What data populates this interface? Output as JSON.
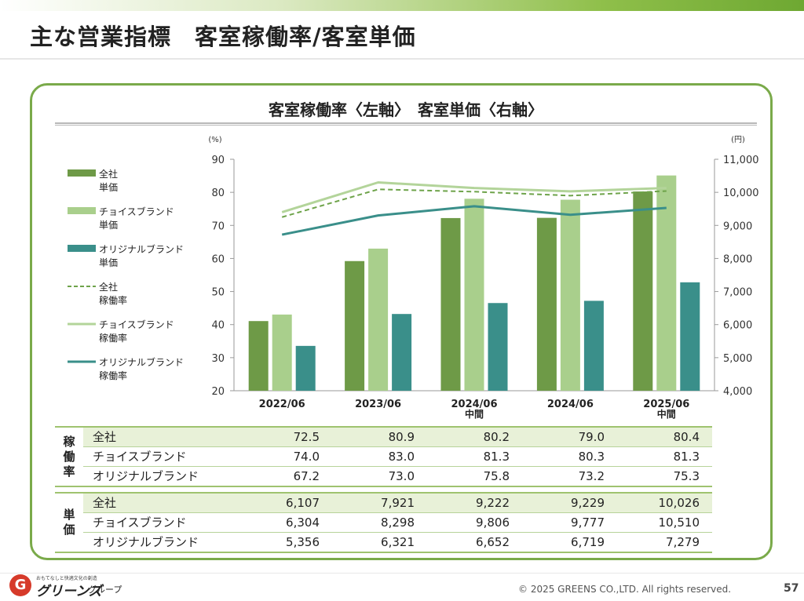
{
  "page": {
    "title": "主な営業指標　客室稼働率/客室単価",
    "copyright": "© 2025 GREENS CO.,LTD. All rights reserved.",
    "page_number": "57"
  },
  "logo": {
    "mark": "G",
    "tagline": "おもてなしと快適文化の創造",
    "name": "グリーンズ",
    "suffix": "グループ"
  },
  "chart_data": {
    "type": "bar",
    "title": "客室稼働率〈左軸〉　客室単価〈右軸〉",
    "categories": [
      "2022/06",
      "2023/06",
      "2024/06\n中間",
      "2024/06",
      "2025/06\n中間"
    ],
    "y_left": {
      "unit": "(%)",
      "range": [
        20,
        90
      ],
      "ticks": [
        20,
        30,
        40,
        50,
        60,
        70,
        80,
        90
      ]
    },
    "y_right": {
      "unit": "(円)",
      "range": [
        4000,
        11000
      ],
      "ticks": [
        4000,
        5000,
        6000,
        7000,
        8000,
        9000,
        10000,
        11000
      ],
      "tick_labels": [
        "4,000",
        "5,000",
        "6,000",
        "7,000",
        "8,000",
        "9,000",
        "10,000",
        "11,000"
      ]
    },
    "bar_series": [
      {
        "name": "全社\n単価",
        "axis": "right",
        "color": "#6e9a47",
        "values": [
          6107,
          7921,
          9222,
          9229,
          10026
        ]
      },
      {
        "name": "チョイスブランド\n単価",
        "axis": "right",
        "color": "#a9cf8c",
        "values": [
          6304,
          8298,
          9806,
          9777,
          10510
        ]
      },
      {
        "name": "オリジナルブランド\n単価",
        "axis": "right",
        "color": "#3a8f8a",
        "values": [
          5356,
          6321,
          6652,
          6719,
          7279
        ]
      }
    ],
    "line_series": [
      {
        "name": "全社\n稼働率",
        "axis": "left",
        "color": "#6ea34a",
        "dashed": true,
        "values": [
          72.5,
          80.9,
          80.2,
          79.0,
          80.4
        ]
      },
      {
        "name": "チョイスブランド\n稼働率",
        "axis": "left",
        "color": "#b3d49a",
        "dashed": false,
        "values": [
          74.0,
          83.0,
          81.3,
          80.3,
          81.3
        ]
      },
      {
        "name": "オリジナルブランド\n稼働率",
        "axis": "left",
        "color": "#3a8f8a",
        "dashed": false,
        "values": [
          67.2,
          73.0,
          75.8,
          73.2,
          75.3
        ]
      }
    ],
    "legend_position": "left",
    "grid": false
  },
  "table": {
    "occupancy": {
      "group_label": "稼\n働\n率",
      "rows": [
        {
          "label": "全社",
          "values": [
            "72.5",
            "80.9",
            "80.2",
            "79.0",
            "80.4"
          ]
        },
        {
          "label": "チョイスブランド",
          "values": [
            "74.0",
            "83.0",
            "81.3",
            "80.3",
            "81.3"
          ]
        },
        {
          "label": "オリジナルブランド",
          "values": [
            "67.2",
            "73.0",
            "75.8",
            "73.2",
            "75.3"
          ]
        }
      ]
    },
    "price": {
      "group_label": "単\n価",
      "rows": [
        {
          "label": "全社",
          "values": [
            "6,107",
            "7,921",
            "9,222",
            "9,229",
            "10,026"
          ]
        },
        {
          "label": "チョイスブランド",
          "values": [
            "6,304",
            "8,298",
            "9,806",
            "9,777",
            "10,510"
          ]
        },
        {
          "label": "オリジナルブランド",
          "values": [
            "5,356",
            "6,321",
            "6,652",
            "6,719",
            "7,279"
          ]
        }
      ]
    }
  }
}
